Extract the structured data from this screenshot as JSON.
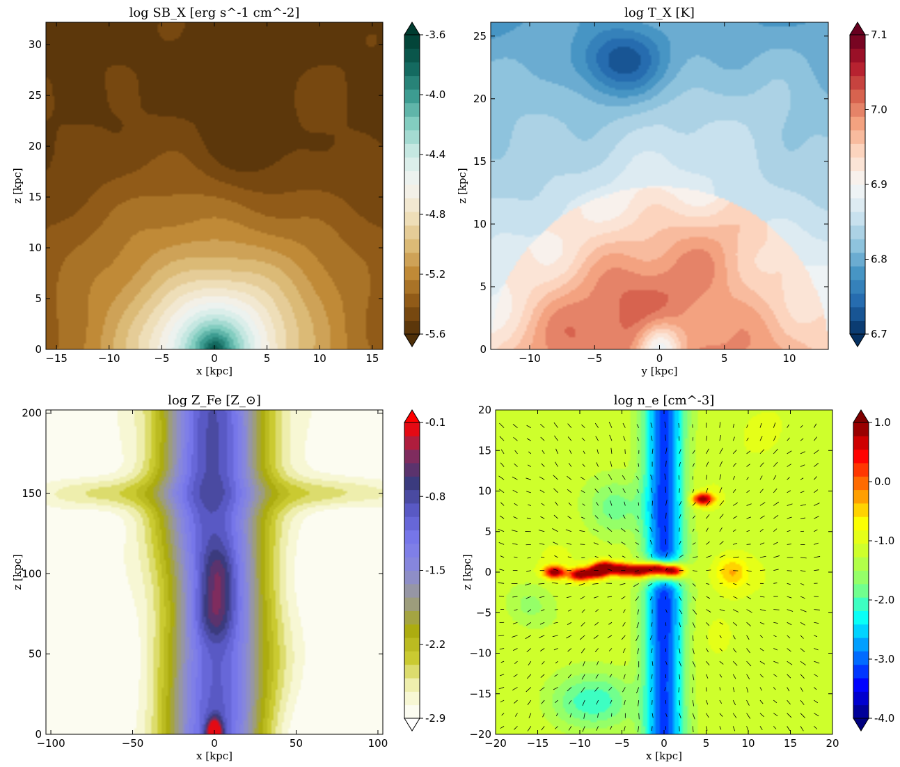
{
  "chart_data": [
    {
      "type": "heatmap",
      "panel": "top-left",
      "title": "log SB_X  [erg s^-1 cm^-2]",
      "xlabel": "x  [kpc]",
      "ylabel": "z  [kpc]",
      "xlim": [
        -16,
        16
      ],
      "ylim": [
        0,
        32.2
      ],
      "xticks": [
        -15,
        -10,
        -5,
        0,
        5,
        10,
        15
      ],
      "xtick_labels": [
        "−15",
        "−10",
        "−5",
        "0",
        "5",
        "10",
        "15"
      ],
      "yticks": [
        0,
        5,
        10,
        15,
        20,
        25,
        30
      ],
      "ytick_labels": [
        "0",
        "5",
        "10",
        "15",
        "20",
        "25",
        "30"
      ],
      "colorbar": {
        "range": [
          -5.6,
          -3.6
        ],
        "ticks": [
          -5.6,
          -5.2,
          -4.8,
          -4.4,
          -4.0,
          -3.6
        ],
        "tick_labels": [
          "-5.6",
          "-5.2",
          "-4.8",
          "-4.4",
          "-4.0",
          "-3.6"
        ],
        "colormap": "BrBG",
        "stops": [
          "#4e2f08",
          "#8a5414",
          "#bf8834",
          "#dcbc79",
          "#f1e3c2",
          "#f4f4f2",
          "#cfebe6",
          "#86cfc2",
          "#3a9a8f",
          "#0e6258",
          "#003c30"
        ],
        "extend": "both"
      },
      "features": [
        "bright core at x=0, z=0 (about -4.0)",
        "secondary dim patch near x=3, z=20 (about -5.1)",
        "faint hole near x=0, z=27"
      ]
    },
    {
      "type": "heatmap",
      "panel": "top-right",
      "title": "log T_X  [K]",
      "xlabel": "y  [kpc]",
      "ylabel": "z  [kpc]",
      "xlim": [
        -13,
        13
      ],
      "ylim": [
        0,
        26.1
      ],
      "xticks": [
        -10,
        -5,
        0,
        5,
        10
      ],
      "xtick_labels": [
        "−10",
        "−5",
        "0",
        "5",
        "10"
      ],
      "yticks": [
        0,
        5,
        10,
        15,
        20,
        25
      ],
      "ytick_labels": [
        "0",
        "5",
        "10",
        "15",
        "20",
        "25"
      ],
      "colorbar": {
        "range": [
          6.7,
          7.1
        ],
        "ticks": [
          6.7,
          6.8,
          6.9,
          7.0,
          7.1
        ],
        "tick_labels": [
          "6.7",
          "6.8",
          "6.9",
          "7.0",
          "7.1"
        ],
        "colormap": "RdBu_r",
        "stops": [
          "#053061",
          "#2166ac",
          "#4393c3",
          "#92c5de",
          "#d1e5f0",
          "#f7f7f7",
          "#fddbc7",
          "#f4a582",
          "#d6604d",
          "#b2182b",
          "#67001f"
        ],
        "extend": "both"
      },
      "features": [
        "hot shock-heated bubble of radius about 13 kpc centred at y=0, z=0 (about 7.0)",
        "cool cloud near y=-3, z=23 (about 6.75)",
        "sharp temperature jump at bubble edge"
      ]
    },
    {
      "type": "heatmap",
      "panel": "bottom-left",
      "title": "log Z_Fe  [Z_⊙]",
      "xlabel": "x  [kpc]",
      "ylabel": "z  [kpc]",
      "xlim": [
        -103,
        103
      ],
      "ylim": [
        0,
        202
      ],
      "xticks": [
        -100,
        -50,
        0,
        50,
        100
      ],
      "xtick_labels": [
        "−100",
        "−50",
        "0",
        "50",
        "100"
      ],
      "yticks": [
        0,
        50,
        100,
        150,
        200
      ],
      "ytick_labels": [
        "0",
        "50",
        "100",
        "150",
        "200"
      ],
      "colorbar": {
        "range": [
          -2.9,
          -0.1
        ],
        "ticks": [
          -2.9,
          -2.2,
          -1.5,
          -0.8,
          -0.1
        ],
        "tick_labels": [
          "-2.9",
          "-2.2",
          "-1.5",
          "-0.8",
          "-0.1"
        ],
        "colormap": "gist_stern-like",
        "stops": [
          "#ffffff",
          "#f3f3c0",
          "#cccc33",
          "#aaaa0e",
          "#9b9b8d",
          "#8a8ad8",
          "#7a7aee",
          "#5a5ac8",
          "#3a3a7a",
          "#8a2a5a",
          "#ff0000"
        ],
        "extend": "both"
      },
      "features": [
        "metal-rich column along x=0 up to z=200 (about -1.2)",
        "peak at x=0, z=0 (about -0.2)",
        "enriched knots near z=75 and z=100 (about -0.9)",
        "metal-poor yellow outflow arms at z=130-160"
      ]
    },
    {
      "type": "heatmap",
      "panel": "bottom-right",
      "title": "log n_e  [cm^-3]",
      "xlabel": "x  [kpc]",
      "ylabel": "z  [kpc]",
      "xlim": [
        -20,
        20
      ],
      "ylim": [
        -20,
        20
      ],
      "xticks": [
        -20,
        -15,
        -10,
        -5,
        0,
        5,
        10,
        15,
        20
      ],
      "xtick_labels": [
        "−20",
        "−15",
        "−10",
        "−5",
        "0",
        "5",
        "10",
        "15",
        "20"
      ],
      "yticks": [
        -20,
        -15,
        -10,
        -5,
        0,
        5,
        10,
        15,
        20
      ],
      "ytick_labels": [
        "−20",
        "−15",
        "−10",
        "−5",
        "0",
        "5",
        "10",
        "15",
        "20"
      ],
      "colorbar": {
        "range": [
          -4.0,
          1.0
        ],
        "ticks": [
          -4.0,
          -3.0,
          -2.0,
          -1.0,
          0.0,
          1.0
        ],
        "tick_labels": [
          "-4.0",
          "-3.0",
          "-2.0",
          "-1.0",
          "0.0",
          "1.0"
        ],
        "colormap": "jet",
        "stops": [
          "#00007f",
          "#0000ff",
          "#007fff",
          "#00ffff",
          "#7fff7f",
          "#c8ff32",
          "#ffff00",
          "#ff7f00",
          "#ff0000",
          "#7f0000"
        ],
        "extend": "both"
      },
      "features": [
        "low-density bipolar channel along x=0 (about -3.2)",
        "dense clumps along the midplane z=0 (about 0.8)",
        "ambient medium about -1.1",
        "velocity vectors drawn as arrows"
      ]
    }
  ]
}
